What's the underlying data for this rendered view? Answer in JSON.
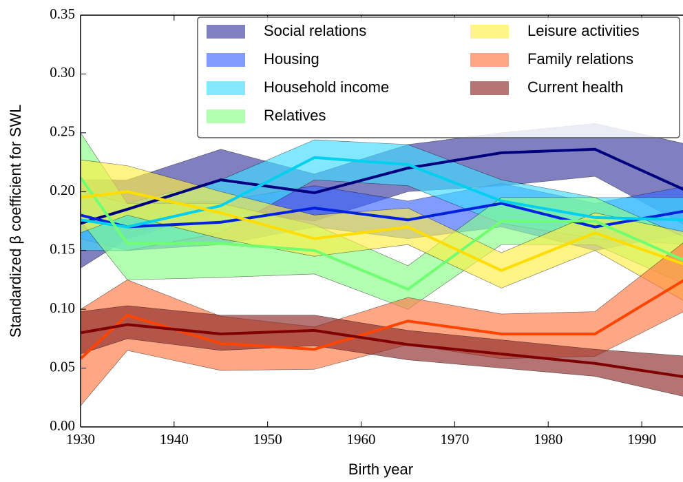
{
  "chart_data": {
    "type": "band-line",
    "x_label": "Birth year",
    "y_label": "Standardized β coefficient for SWL",
    "x": [
      1930,
      1935,
      1945,
      1955,
      1965,
      1975,
      1985,
      1995
    ],
    "xlim": [
      1930,
      1995
    ],
    "xticks": [
      1930,
      1940,
      1950,
      1960,
      1970,
      1980,
      1990
    ],
    "ylim": [
      0,
      0.35
    ],
    "yticks": [
      {
        "value": 0,
        "label": "0.00"
      },
      {
        "value": 0.05,
        "label": "0.05"
      },
      {
        "value": 0.1,
        "label": "0.10"
      },
      {
        "value": 0.15,
        "label": "0.15"
      },
      {
        "value": 0.2,
        "label": "0.20"
      },
      {
        "value": 0.25,
        "label": "0.25"
      },
      {
        "value": 0.3,
        "label": "0.30"
      },
      {
        "value": 0.35,
        "label": "0.35"
      }
    ],
    "legend": "upper right",
    "series": [
      {
        "name": "Social relations",
        "color": "#00007f",
        "band_color": "#3c3ca0",
        "values": [
          0.173,
          0.185,
          0.21,
          0.199,
          0.22,
          0.233,
          0.236,
          0.2
        ],
        "lower": [
          0.135,
          0.16,
          0.183,
          0.175,
          0.2,
          0.205,
          0.213,
          0.17
        ],
        "upper": [
          0.21,
          0.21,
          0.236,
          0.215,
          0.24,
          0.25,
          0.258,
          0.24
        ]
      },
      {
        "name": "Housing",
        "color": "#0022dd",
        "band_color": "#3d66ff",
        "values": [
          0.18,
          0.17,
          0.174,
          0.186,
          0.176,
          0.19,
          0.17,
          0.184
        ],
        "lower": [
          0.16,
          0.15,
          0.155,
          0.17,
          0.16,
          0.17,
          0.15,
          0.165
        ],
        "upper": [
          0.2,
          0.19,
          0.192,
          0.205,
          0.192,
          0.207,
          0.19,
          0.205
        ]
      },
      {
        "name": "Household income",
        "color": "#00d0f0",
        "band_color": "#40dcff",
        "values": [
          0.176,
          0.17,
          0.188,
          0.229,
          0.223,
          0.192,
          0.178,
          0.176
        ],
        "lower": [
          0.15,
          0.15,
          0.165,
          0.21,
          0.205,
          0.173,
          0.16,
          0.155
        ],
        "upper": [
          0.2,
          0.19,
          0.21,
          0.244,
          0.24,
          0.21,
          0.195,
          0.195
        ]
      },
      {
        "name": "Relatives",
        "color": "#70ff70",
        "band_color": "#88ff88",
        "values": [
          0.212,
          0.156,
          0.156,
          0.15,
          0.117,
          0.175,
          0.175,
          0.14
        ],
        "lower": [
          0.175,
          0.125,
          0.127,
          0.13,
          0.1,
          0.155,
          0.155,
          0.12
        ],
        "upper": [
          0.25,
          0.19,
          0.19,
          0.172,
          0.137,
          0.195,
          0.195,
          0.16
        ]
      },
      {
        "name": "Leisure activities",
        "color": "#ffdd00",
        "band_color": "#ffee44",
        "values": [
          0.195,
          0.2,
          0.182,
          0.16,
          0.17,
          0.133,
          0.165,
          0.137
        ],
        "lower": [
          0.165,
          0.18,
          0.16,
          0.145,
          0.155,
          0.118,
          0.15,
          0.105
        ],
        "upper": [
          0.227,
          0.222,
          0.2,
          0.18,
          0.186,
          0.148,
          0.182,
          0.165
        ]
      },
      {
        "name": "Family relations",
        "color": "#ff4400",
        "band_color": "#ff7744",
        "values": [
          0.058,
          0.095,
          0.071,
          0.066,
          0.09,
          0.079,
          0.079,
          0.127
        ],
        "lower": [
          0.018,
          0.065,
          0.048,
          0.049,
          0.07,
          0.058,
          0.06,
          0.1
        ],
        "upper": [
          0.1,
          0.125,
          0.094,
          0.085,
          0.11,
          0.096,
          0.098,
          0.16
        ]
      },
      {
        "name": "Current health",
        "color": "#7f0000",
        "band_color": "#8c2a2a",
        "values": [
          0.08,
          0.087,
          0.079,
          0.082,
          0.07,
          0.062,
          0.054,
          0.042
        ],
        "lower": [
          0.062,
          0.075,
          0.065,
          0.069,
          0.057,
          0.05,
          0.043,
          0.025
        ],
        "upper": [
          0.098,
          0.103,
          0.095,
          0.095,
          0.082,
          0.074,
          0.066,
          0.06
        ]
      }
    ]
  }
}
